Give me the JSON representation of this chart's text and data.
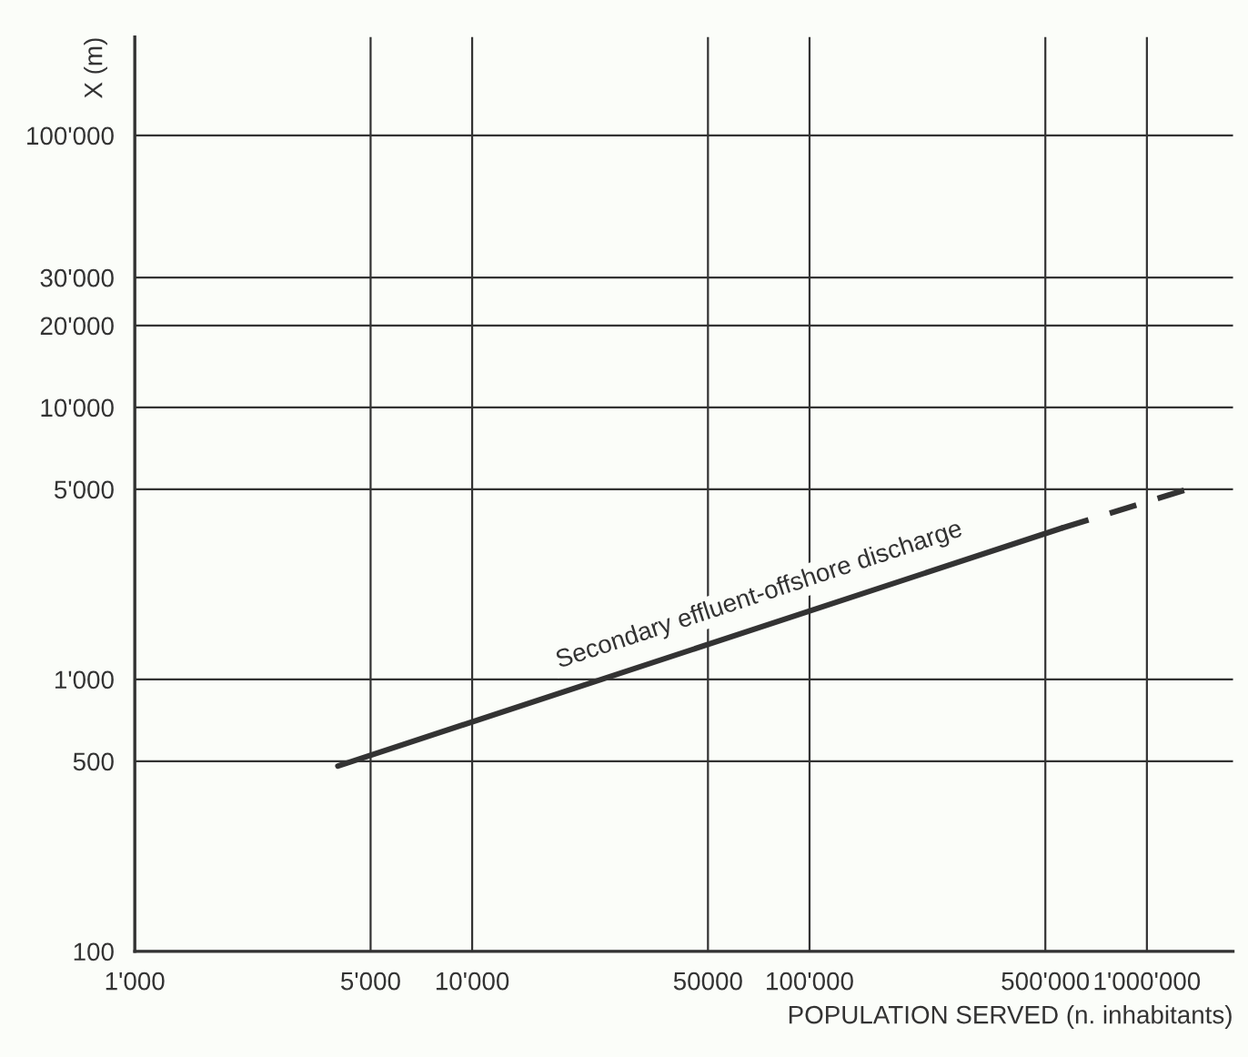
{
  "chart_data": {
    "type": "line",
    "xlabel": "POPULATION SERVED (n. inhabitants)",
    "ylabel": "X (m)",
    "log": "xy",
    "grid": true,
    "marker": "none",
    "xlim": [
      1000,
      1800000
    ],
    "ylim": [
      100,
      230000
    ],
    "xticks": [
      {
        "value": 1000,
        "label": "1'000"
      },
      {
        "value": 5000,
        "label": "5'000"
      },
      {
        "value": 10000,
        "label": "10'000"
      },
      {
        "value": 50000,
        "label": "50000"
      },
      {
        "value": 100000,
        "label": "100'000"
      },
      {
        "value": 500000,
        "label": "500'000"
      },
      {
        "value": 1000000,
        "label": "1'000'000"
      }
    ],
    "yticks": [
      100,
      500,
      {
        "value": 1000,
        "label": "1'000"
      },
      {
        "value": 5000,
        "label": "5'000"
      },
      {
        "value": 10000,
        "label": "10'000"
      },
      {
        "value": 20000,
        "label": "20'000"
      },
      {
        "value": 30000,
        "label": "30'000"
      },
      {
        "value": 100000,
        "label": "100'000"
      }
    ],
    "series": [
      {
        "name": "Secondary effluent-offshore discharge",
        "color": "#333333",
        "line_style": "solid",
        "x": [
          4000,
          560000
        ],
        "values": [
          480,
          3600
        ]
      },
      {
        "color": "#333333",
        "line_style": "dashed",
        "x": [
          560000,
          1320000
        ],
        "values": [
          3600,
          5000
        ]
      }
    ]
  }
}
